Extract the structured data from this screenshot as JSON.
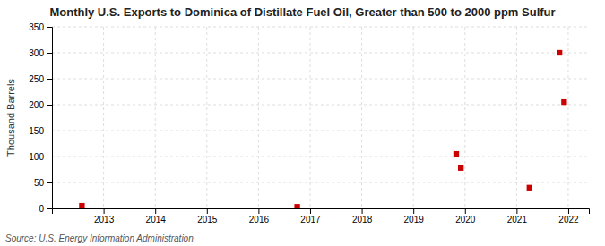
{
  "chart_data": {
    "type": "scatter",
    "title": "Monthly U.S. Exports to Dominica of Distillate Fuel Oil, Greater than 500 to 2000 ppm Sulfur",
    "ylabel": "Thousand Barrels",
    "source": "Source: U.S. Energy Information Administration",
    "x": [
      2012.58,
      2016.75,
      2019.83,
      2019.92,
      2021.25,
      2021.83,
      2021.92
    ],
    "values": [
      5,
      3,
      105,
      78,
      40,
      300,
      205
    ],
    "color": "#cc0000",
    "marker": "square",
    "xlim": [
      2012.0,
      2022.4
    ],
    "ylim": [
      0,
      350
    ],
    "xticks": [
      2013,
      2014,
      2015,
      2016,
      2017,
      2018,
      2019,
      2020,
      2021,
      2022
    ],
    "yticks": [
      0,
      50,
      100,
      150,
      200,
      250,
      300,
      350
    ],
    "grid": true
  }
}
